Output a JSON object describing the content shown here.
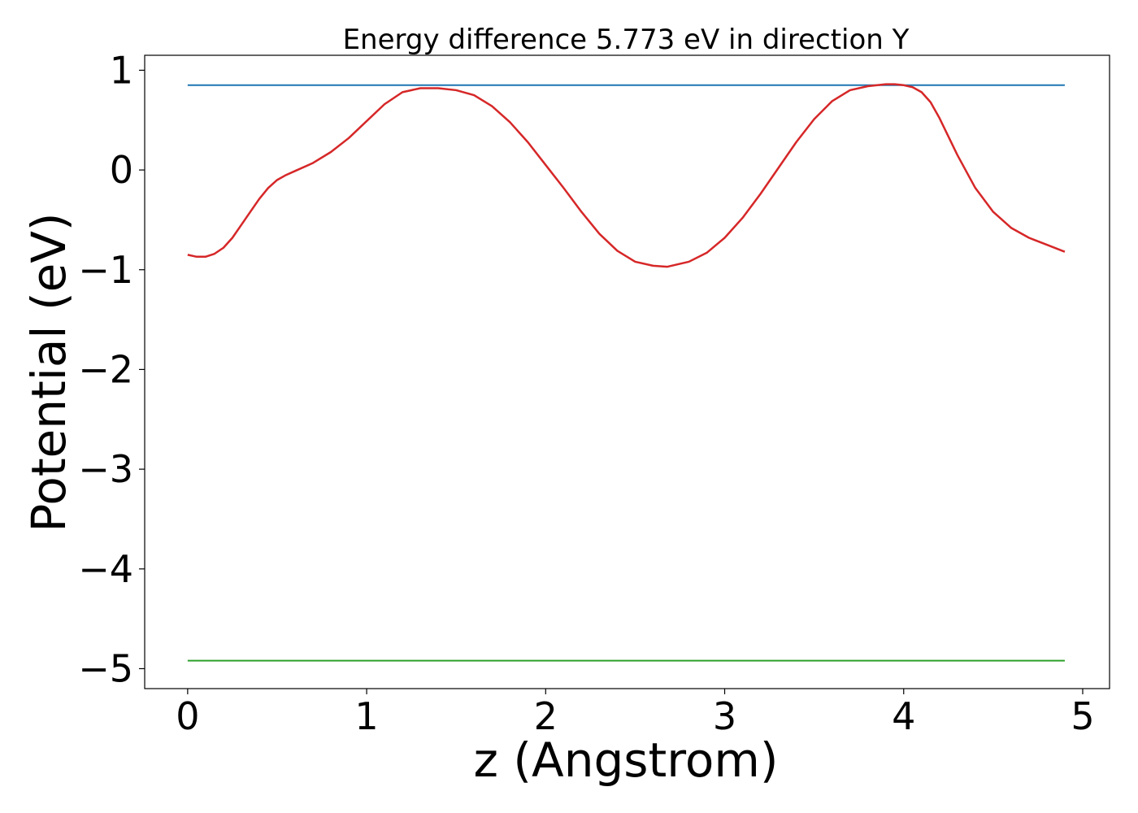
{
  "chart_data": {
    "type": "line",
    "title": "Energy difference 5.773 eV in direction Y",
    "xlabel": "z (Angstrom)",
    "ylabel": "Potential (eV)",
    "xlim": [
      -0.24,
      5.15
    ],
    "ylim": [
      -5.2,
      1.15
    ],
    "grid": false,
    "legend": "none",
    "xticks": [
      0,
      1,
      2,
      3,
      4,
      5
    ],
    "xtick_labels": [
      "0",
      "1",
      "2",
      "3",
      "4",
      "5"
    ],
    "yticks": [
      1,
      0,
      -1,
      -2,
      -3,
      -4,
      -5
    ],
    "ytick_labels": [
      "1",
      "0",
      "−1",
      "−2",
      "−3",
      "−4",
      "−5"
    ],
    "series": [
      {
        "kind": "hline",
        "color": "#1f77b4",
        "x": [
          0,
          4.9
        ],
        "y": [
          0.85,
          0.85
        ]
      },
      {
        "kind": "hline",
        "color": "#2ca02c",
        "x": [
          0,
          4.9
        ],
        "y": [
          -4.92,
          -4.92
        ]
      },
      {
        "kind": "curve",
        "color": "#d62728",
        "x": [
          0,
          0.05,
          0.1,
          0.15,
          0.2,
          0.25,
          0.3,
          0.35,
          0.4,
          0.45,
          0.5,
          0.55,
          0.6,
          0.7,
          0.8,
          0.9,
          1.0,
          1.1,
          1.2,
          1.3,
          1.4,
          1.5,
          1.6,
          1.7,
          1.8,
          1.9,
          2.0,
          2.1,
          2.2,
          2.3,
          2.4,
          2.5,
          2.6,
          2.68,
          2.8,
          2.9,
          3.0,
          3.1,
          3.2,
          3.3,
          3.4,
          3.5,
          3.6,
          3.7,
          3.8,
          3.9,
          3.95,
          4.0,
          4.05,
          4.1,
          4.15,
          4.2,
          4.3,
          4.4,
          4.5,
          4.6,
          4.7,
          4.8,
          4.9
        ],
        "y": [
          -0.85,
          -0.87,
          -0.87,
          -0.84,
          -0.78,
          -0.68,
          -0.55,
          -0.42,
          -0.29,
          -0.18,
          -0.1,
          -0.05,
          -0.01,
          0.07,
          0.18,
          0.32,
          0.49,
          0.66,
          0.78,
          0.82,
          0.82,
          0.8,
          0.75,
          0.64,
          0.48,
          0.28,
          0.05,
          -0.18,
          -0.42,
          -0.64,
          -0.81,
          -0.92,
          -0.96,
          -0.97,
          -0.92,
          -0.83,
          -0.68,
          -0.48,
          -0.24,
          0.02,
          0.28,
          0.51,
          0.69,
          0.8,
          0.84,
          0.86,
          0.86,
          0.85,
          0.83,
          0.78,
          0.68,
          0.52,
          0.15,
          -0.18,
          -0.42,
          -0.58,
          -0.68,
          -0.75,
          -0.82
        ]
      }
    ]
  }
}
